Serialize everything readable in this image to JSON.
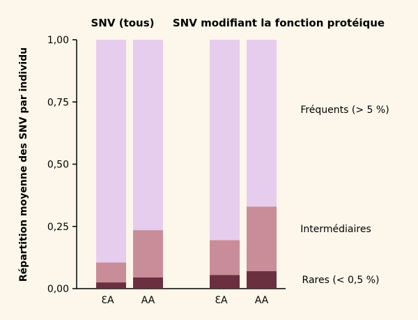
{
  "chart_data": {
    "type": "bar",
    "stacked": true,
    "ylabel": "Répartition moyenne des SNV par individu",
    "ylim": [
      0,
      1
    ],
    "yticks": [
      "0,00",
      "0,25",
      "0,50",
      "0,75",
      "1,00"
    ],
    "groups": [
      {
        "title": "SNV (tous)",
        "categories": [
          "EA",
          "AA"
        ]
      },
      {
        "title": "SNV modifiant la fonction protéique",
        "categories": [
          "EA",
          "AA"
        ]
      }
    ],
    "categories": [
      "EA",
      "AA",
      "EA",
      "AA"
    ],
    "series": [
      {
        "name": "Rares (< 0,5 %)",
        "values": [
          0.025,
          0.045,
          0.055,
          0.07
        ],
        "color": "#6b3040"
      },
      {
        "name": "Intermédiaires",
        "values": [
          0.08,
          0.19,
          0.14,
          0.26
        ],
        "color": "#c98d9a"
      },
      {
        "name": "Fréquents (> 5 %)",
        "values": [
          0.895,
          0.765,
          0.805,
          0.67
        ],
        "color": "#e6cdee"
      }
    ],
    "legend_placement": "right",
    "grid": false
  },
  "colors": {
    "background": "#fcf7ea",
    "axis": "#000000"
  }
}
